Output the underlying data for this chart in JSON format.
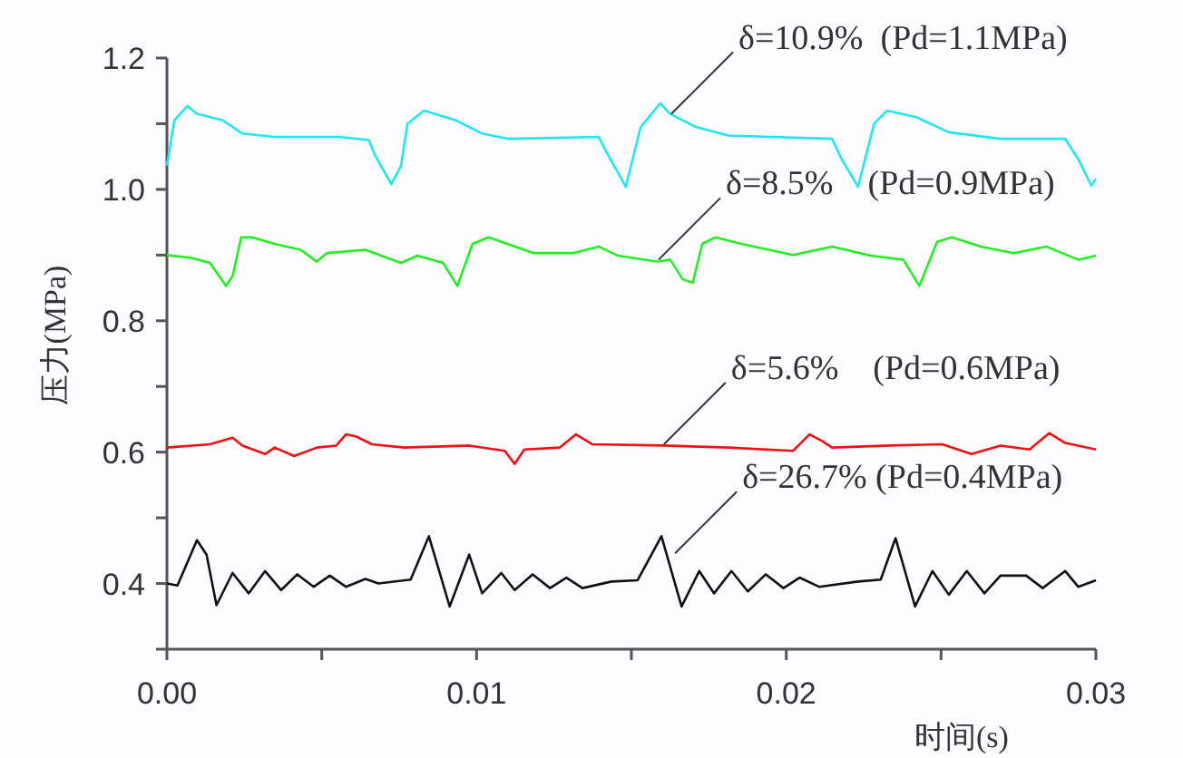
{
  "chart_data": {
    "type": "line",
    "xlabel": "时间(s)",
    "ylabel": "压力(MPa)",
    "xlim": [
      0,
      0.03
    ],
    "ylim": [
      0.3,
      1.2
    ],
    "xticks": [
      {
        "value": 0,
        "label": "0.00"
      },
      {
        "value": 0.005,
        "label": null
      },
      0.01,
      {
        "value": 0.015,
        "label": null
      },
      0.02,
      {
        "value": 0.025,
        "label": null
      },
      0.03
    ],
    "yticks": [
      {
        "value": 0.3,
        "label": null
      },
      0.4,
      {
        "value": 0.5,
        "label": null
      },
      0.6,
      {
        "value": 0.7,
        "label": null
      },
      0.8,
      {
        "value": 0.9,
        "label": null
      },
      {
        "value": 1,
        "label": "1.0"
      },
      {
        "value": 1.1,
        "label": null
      },
      1.2
    ],
    "grid": false,
    "marker": "none",
    "line_style": "solid",
    "series": [
      {
        "color": "#22e6ee",
        "x": [
          0,
          0.00024,
          0.00066,
          0.00097,
          0.00181,
          0.00244,
          0.00348,
          0.00557,
          0.00652,
          0.00673,
          0.00725,
          0.00756,
          0.00777,
          0.0083,
          0.00934,
          0.01018,
          0.01101,
          0.01394,
          0.01426,
          0.01482,
          0.0153,
          0.01593,
          0.01625,
          0.01708,
          0.01813,
          0.02148,
          0.02179,
          0.02232,
          0.02284,
          0.02326,
          0.0242,
          0.02525,
          0.02692,
          0.02901,
          0.02943,
          0.02985,
          0.03
        ],
        "values": [
          1.036,
          1.105,
          1.127,
          1.115,
          1.105,
          1.085,
          1.08,
          1.08,
          1.075,
          1.051,
          1.008,
          1.036,
          1.1,
          1.12,
          1.105,
          1.085,
          1.077,
          1.08,
          1.051,
          1.004,
          1.095,
          1.131,
          1.115,
          1.095,
          1.082,
          1.077,
          1.046,
          1.004,
          1.1,
          1.12,
          1.11,
          1.087,
          1.077,
          1.077,
          1.046,
          1.006,
          1.016
        ]
      },
      {
        "color": "#22ee22",
        "x": [
          0,
          0.00076,
          0.00139,
          0.00191,
          0.00212,
          0.0024,
          0.00275,
          0.00348,
          0.00432,
          0.00484,
          0.00516,
          0.00641,
          0.00756,
          0.00809,
          0.00892,
          0.00938,
          0.00987,
          0.01039,
          0.01185,
          0.01311,
          0.01394,
          0.01457,
          0.01583,
          0.01625,
          0.01666,
          0.01698,
          0.01729,
          0.01771,
          0.01855,
          0.02022,
          0.02148,
          0.02273,
          0.02378,
          0.0243,
          0.02487,
          0.02535,
          0.02629,
          0.02734,
          0.02839,
          0.02943,
          0.03
        ],
        "values": [
          0.9,
          0.896,
          0.888,
          0.853,
          0.868,
          0.927,
          0.927,
          0.917,
          0.908,
          0.89,
          0.903,
          0.908,
          0.888,
          0.899,
          0.888,
          0.853,
          0.917,
          0.927,
          0.903,
          0.903,
          0.913,
          0.899,
          0.89,
          0.893,
          0.863,
          0.858,
          0.917,
          0.927,
          0.917,
          0.9,
          0.913,
          0.899,
          0.893,
          0.853,
          0.92,
          0.927,
          0.913,
          0.903,
          0.913,
          0.893,
          0.899
        ]
      },
      {
        "color": "#ee1111",
        "x": [
          0,
          0.00139,
          0.00212,
          0.00244,
          0.00317,
          0.00348,
          0.00411,
          0.00484,
          0.00547,
          0.00578,
          0.0061,
          0.00662,
          0.00767,
          0.00976,
          0.01091,
          0.01123,
          0.01154,
          0.01269,
          0.01321,
          0.01373,
          0.01604,
          0.01813,
          0.02022,
          0.02075,
          0.02116,
          0.02148,
          0.02336,
          0.02504,
          0.02598,
          0.02692,
          0.02786,
          0.02849,
          0.02901,
          0.03
        ],
        "values": [
          0.607,
          0.612,
          0.622,
          0.61,
          0.597,
          0.607,
          0.594,
          0.607,
          0.61,
          0.627,
          0.624,
          0.612,
          0.607,
          0.61,
          0.602,
          0.582,
          0.604,
          0.607,
          0.627,
          0.612,
          0.61,
          0.607,
          0.602,
          0.627,
          0.617,
          0.607,
          0.61,
          0.612,
          0.597,
          0.61,
          0.604,
          0.629,
          0.614,
          0.604
        ]
      },
      {
        "color": "#111111",
        "x": [
          0,
          0.00034,
          0.00097,
          0.00128,
          0.0016,
          0.00212,
          0.00264,
          0.00317,
          0.00369,
          0.00421,
          0.00474,
          0.00526,
          0.00578,
          0.00641,
          0.00683,
          0.00787,
          0.00846,
          0.00913,
          0.00976,
          0.01018,
          0.0108,
          0.01123,
          0.01181,
          0.01237,
          0.0129,
          0.01342,
          0.01436,
          0.0152,
          0.01597,
          0.01662,
          0.01719,
          0.01767,
          0.01823,
          0.01876,
          0.01934,
          0.01991,
          0.02043,
          0.02106,
          0.02232,
          0.02305,
          0.02353,
          0.02416,
          0.02472,
          0.02525,
          0.02583,
          0.0264,
          0.02692,
          0.02775,
          0.02828,
          0.02901,
          0.02943,
          0.03
        ],
        "values": [
          0.4,
          0.397,
          0.466,
          0.444,
          0.367,
          0.416,
          0.385,
          0.419,
          0.39,
          0.414,
          0.395,
          0.412,
          0.395,
          0.407,
          0.4,
          0.406,
          0.472,
          0.365,
          0.444,
          0.385,
          0.416,
          0.39,
          0.414,
          0.393,
          0.409,
          0.393,
          0.403,
          0.405,
          0.472,
          0.365,
          0.419,
          0.385,
          0.419,
          0.388,
          0.414,
          0.393,
          0.409,
          0.395,
          0.403,
          0.406,
          0.469,
          0.365,
          0.419,
          0.383,
          0.419,
          0.385,
          0.412,
          0.412,
          0.393,
          0.419,
          0.395,
          0.405
        ]
      }
    ],
    "annotations": [
      {
        "text": "δ=10.9%  (Pd=1.1MPa)",
        "x": 0.01629,
        "y": 1.115
      },
      {
        "text": "δ=8.5%    (Pd=0.9MPa)",
        "x": 0.01588,
        "y": 0.893
      },
      {
        "text": "δ=5.6%    (Pd=0.6MPa)",
        "x": 0.01605,
        "y": 0.612
      },
      {
        "text": "δ=26.7% (Pd=0.4MPa)",
        "x": 0.01641,
        "y": 0.446
      }
    ]
  }
}
